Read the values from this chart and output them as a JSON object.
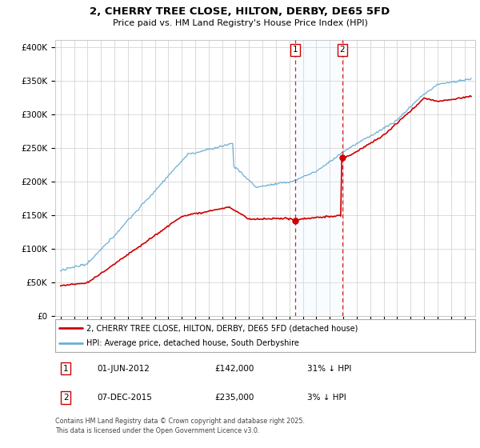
{
  "title_line1": "2, CHERRY TREE CLOSE, HILTON, DERBY, DE65 5FD",
  "title_line2": "Price paid vs. HM Land Registry's House Price Index (HPI)",
  "yticks": [
    0,
    50000,
    100000,
    150000,
    200000,
    250000,
    300000,
    350000,
    400000
  ],
  "ytick_labels": [
    "£0",
    "£50K",
    "£100K",
    "£150K",
    "£200K",
    "£250K",
    "£300K",
    "£350K",
    "£400K"
  ],
  "xlim_start": 1994.6,
  "xlim_end": 2025.8,
  "ylim_min": 0,
  "ylim_max": 410000,
  "hpi_color": "#6baed6",
  "price_color": "#cc0000",
  "marker1_date": 2012.42,
  "marker2_date": 2015.92,
  "marker1_price": 142000,
  "marker2_price": 235000,
  "legend_line1": "2, CHERRY TREE CLOSE, HILTON, DERBY, DE65 5FD (detached house)",
  "legend_line2": "HPI: Average price, detached house, South Derbyshire",
  "table_row1_num": "1",
  "table_row1_date": "01-JUN-2012",
  "table_row1_price": "£142,000",
  "table_row1_hpi": "31% ↓ HPI",
  "table_row2_num": "2",
  "table_row2_date": "07-DEC-2015",
  "table_row2_price": "£235,000",
  "table_row2_hpi": "3% ↓ HPI",
  "footnote": "Contains HM Land Registry data © Crown copyright and database right 2025.\nThis data is licensed under the Open Government Licence v3.0.",
  "background_color": "#ffffff",
  "grid_color": "#cccccc",
  "span_color": "#ddeeff"
}
